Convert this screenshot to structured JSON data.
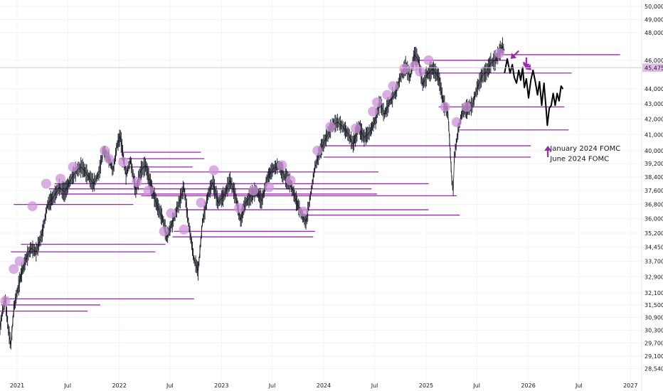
{
  "chart_data": {
    "type": "candlestick",
    "title": "",
    "x_range": [
      "2020-11-01",
      "2027-02-10"
    ],
    "y_scale": "log",
    "y_range": [
      28000,
      50500
    ],
    "grid": true,
    "x_ticks": [
      {
        "label": "2021",
        "date": "2021-01-01"
      },
      {
        "label": "Jul",
        "date": "2021-07-01"
      },
      {
        "label": "2022",
        "date": "2022-01-01"
      },
      {
        "label": "Jul",
        "date": "2022-07-01"
      },
      {
        "label": "2023",
        "date": "2023-01-01"
      },
      {
        "label": "Jul",
        "date": "2023-07-01"
      },
      {
        "label": "2024",
        "date": "2024-01-01"
      },
      {
        "label": "Jul",
        "date": "2024-07-01"
      },
      {
        "label": "2025",
        "date": "2025-01-01"
      },
      {
        "label": "Jul",
        "date": "2025-07-01"
      },
      {
        "label": "2026",
        "date": "2026-01-01"
      },
      {
        "label": "Jul",
        "date": "2026-07-01"
      },
      {
        "label": "2027",
        "date": "2027-01-01"
      }
    ],
    "y_ticks": [
      {
        "label": "50,000",
        "value": 50000
      },
      {
        "label": "49,000",
        "value": 49000
      },
      {
        "label": "48,000",
        "value": 48000
      },
      {
        "label": "46,000",
        "value": 46000
      },
      {
        "label": "44,000",
        "value": 44000
      },
      {
        "label": "43,000",
        "value": 43000
      },
      {
        "label": "42,000",
        "value": 42000
      },
      {
        "label": "41,000",
        "value": 41000
      },
      {
        "label": "40,000",
        "value": 40000
      },
      {
        "label": "39,200",
        "value": 39200
      },
      {
        "label": "38,400",
        "value": 38400
      },
      {
        "label": "37,600",
        "value": 37600
      },
      {
        "label": "36,800",
        "value": 36800
      },
      {
        "label": "36,000",
        "value": 36000
      },
      {
        "label": "35,200",
        "value": 35200
      },
      {
        "label": "34,450",
        "value": 34450
      },
      {
        "label": "33,700",
        "value": 33700
      },
      {
        "label": "32,900",
        "value": 32900
      },
      {
        "label": "32,100",
        "value": 32100
      },
      {
        "label": "31,500",
        "value": 31500
      },
      {
        "label": "30,900",
        "value": 30900
      },
      {
        "label": "30,300",
        "value": 30300
      },
      {
        "label": "29,700",
        "value": 29700
      },
      {
        "label": "29,100",
        "value": 29100
      },
      {
        "label": "28,540",
        "value": 28540
      }
    ],
    "last_price": {
      "label": "45,475",
      "value": 45475
    },
    "price_path": [
      [
        "2020-11-01",
        30400
      ],
      [
        "2020-11-10",
        31200
      ],
      [
        "2020-11-20",
        31800
      ],
      [
        "2020-12-01",
        30300
      ],
      [
        "2020-12-10",
        29600
      ],
      [
        "2020-12-20",
        31300
      ],
      [
        "2021-01-01",
        32100
      ],
      [
        "2021-01-15",
        33000
      ],
      [
        "2021-02-01",
        33800
      ],
      [
        "2021-02-20",
        34400
      ],
      [
        "2021-03-10",
        34200
      ],
      [
        "2021-04-01",
        35200
      ],
      [
        "2021-04-20",
        36800
      ],
      [
        "2021-05-10",
        37200
      ],
      [
        "2021-06-01",
        37800
      ],
      [
        "2021-06-20",
        37500
      ],
      [
        "2021-07-10",
        38200
      ],
      [
        "2021-08-01",
        38800
      ],
      [
        "2021-08-20",
        39000
      ],
      [
        "2021-09-10",
        38500
      ],
      [
        "2021-10-01",
        38000
      ],
      [
        "2021-10-20",
        38600
      ],
      [
        "2021-11-05",
        40000
      ],
      [
        "2021-11-25",
        39500
      ],
      [
        "2021-12-10",
        38800
      ],
      [
        "2021-12-25",
        40400
      ],
      [
        "2022-01-05",
        40900
      ],
      [
        "2022-01-25",
        38500
      ],
      [
        "2022-02-10",
        39400
      ],
      [
        "2022-03-01",
        37600
      ],
      [
        "2022-03-20",
        38800
      ],
      [
        "2022-04-05",
        39100
      ],
      [
        "2022-04-25",
        37800
      ],
      [
        "2022-05-15",
        36800
      ],
      [
        "2022-06-05",
        36000
      ],
      [
        "2022-06-20",
        35000
      ],
      [
        "2022-07-10",
        35800
      ],
      [
        "2022-08-01",
        36800
      ],
      [
        "2022-08-20",
        37800
      ],
      [
        "2022-09-05",
        35800
      ],
      [
        "2022-09-25",
        33800
      ],
      [
        "2022-10-10",
        33200
      ],
      [
        "2022-10-25",
        35800
      ],
      [
        "2022-11-15",
        37400
      ],
      [
        "2022-12-01",
        38100
      ],
      [
        "2022-12-20",
        36900
      ],
      [
        "2023-01-10",
        37300
      ],
      [
        "2023-02-01",
        38200
      ],
      [
        "2023-02-20",
        37300
      ],
      [
        "2023-03-10",
        35900
      ],
      [
        "2023-03-25",
        36800
      ],
      [
        "2023-04-15",
        37300
      ],
      [
        "2023-05-05",
        37600
      ],
      [
        "2023-05-25",
        37000
      ],
      [
        "2023-06-15",
        38400
      ],
      [
        "2023-07-05",
        38900
      ],
      [
        "2023-07-25",
        39100
      ],
      [
        "2023-08-15",
        38400
      ],
      [
        "2023-09-05",
        38000
      ],
      [
        "2023-09-25",
        37000
      ],
      [
        "2023-10-15",
        36200
      ],
      [
        "2023-10-30",
        35800
      ],
      [
        "2023-11-15",
        37300
      ],
      [
        "2023-12-01",
        39000
      ],
      [
        "2023-12-20",
        40000
      ],
      [
        "2024-01-10",
        40800
      ],
      [
        "2024-02-01",
        41600
      ],
      [
        "2024-02-20",
        41800
      ],
      [
        "2024-03-10",
        41500
      ],
      [
        "2024-03-30",
        41000
      ],
      [
        "2024-04-15",
        40400
      ],
      [
        "2024-05-05",
        41500
      ],
      [
        "2024-05-25",
        40800
      ],
      [
        "2024-06-15",
        41200
      ],
      [
        "2024-07-05",
        42000
      ],
      [
        "2024-07-20",
        43100
      ],
      [
        "2024-08-05",
        42300
      ],
      [
        "2024-08-25",
        43200
      ],
      [
        "2024-09-15",
        43800
      ],
      [
        "2024-10-01",
        44800
      ],
      [
        "2024-10-20",
        45600
      ],
      [
        "2024-11-05",
        44800
      ],
      [
        "2024-11-20",
        46400
      ],
      [
        "2024-12-05",
        46000
      ],
      [
        "2024-12-20",
        44300
      ],
      [
        "2025-01-05",
        45000
      ],
      [
        "2025-01-25",
        45400
      ],
      [
        "2025-02-15",
        44800
      ],
      [
        "2025-03-05",
        43000
      ],
      [
        "2025-03-20",
        42400
      ],
      [
        "2025-04-03",
        38200
      ],
      [
        "2025-04-08",
        37600
      ],
      [
        "2025-04-12",
        39600
      ],
      [
        "2025-04-25",
        41200
      ],
      [
        "2025-05-10",
        42500
      ],
      [
        "2025-05-30",
        42700
      ],
      [
        "2025-06-15",
        42900
      ],
      [
        "2025-07-01",
        44000
      ],
      [
        "2025-07-20",
        44900
      ],
      [
        "2025-08-05",
        45200
      ],
      [
        "2025-08-20",
        45800
      ],
      [
        "2025-09-05",
        46000
      ],
      [
        "2025-09-20",
        46600
      ],
      [
        "2025-10-01",
        47000
      ],
      [
        "2025-10-08",
        46700
      ]
    ],
    "projection_path": [
      [
        "2025-10-08",
        45100
      ],
      [
        "2025-10-18",
        46100
      ],
      [
        "2025-10-28",
        45100
      ],
      [
        "2025-11-05",
        45700
      ],
      [
        "2025-11-12",
        44800
      ],
      [
        "2025-11-20",
        44400
      ],
      [
        "2025-11-28",
        45300
      ],
      [
        "2025-12-05",
        44600
      ],
      [
        "2025-12-12",
        45500
      ],
      [
        "2025-12-18",
        44100
      ],
      [
        "2025-12-25",
        44700
      ],
      [
        "2026-01-02",
        43400
      ],
      [
        "2026-01-10",
        44600
      ],
      [
        "2026-01-18",
        45300
      ],
      [
        "2026-01-26",
        44500
      ],
      [
        "2026-02-03",
        43600
      ],
      [
        "2026-02-10",
        44500
      ],
      [
        "2026-02-18",
        42900
      ],
      [
        "2026-02-26",
        44400
      ],
      [
        "2026-03-06",
        42600
      ],
      [
        "2026-03-10",
        41600
      ],
      [
        "2026-03-17",
        42700
      ],
      [
        "2026-03-24",
        42900
      ],
      [
        "2026-03-31",
        43700
      ],
      [
        "2026-04-07",
        42900
      ],
      [
        "2026-04-14",
        43700
      ],
      [
        "2026-04-21",
        43200
      ],
      [
        "2026-04-28",
        44200
      ],
      [
        "2026-05-05",
        44000
      ]
    ],
    "levels": [
      {
        "start": "2025-09-20",
        "end": "2026-11-25",
        "value": 46400
      },
      {
        "start": "2024-12-01",
        "end": "2025-10-20",
        "value": 46000
      },
      {
        "start": "2024-12-10",
        "end": "2026-06-05",
        "value": 45100
      },
      {
        "start": "2025-02-15",
        "end": "2026-05-10",
        "value": 42800
      },
      {
        "start": "2025-05-01",
        "end": "2026-05-25",
        "value": 41300
      },
      {
        "start": "2024-01-05",
        "end": "2026-01-10",
        "value": 40300
      },
      {
        "start": "2024-01-01",
        "end": "2026-01-10",
        "value": 39600
      },
      {
        "start": "2022-01-05",
        "end": "2022-10-20",
        "value": 39900
      },
      {
        "start": "2022-01-01",
        "end": "2022-11-01",
        "value": 39500
      },
      {
        "start": "2022-01-10",
        "end": "2022-09-20",
        "value": 39000
      },
      {
        "start": "2022-04-20",
        "end": "2024-07-15",
        "value": 38700
      },
      {
        "start": "2021-05-15",
        "end": "2025-01-10",
        "value": 38000
      },
      {
        "start": "2021-04-25",
        "end": "2024-06-20",
        "value": 37700
      },
      {
        "start": "2021-06-01",
        "end": "2024-07-10",
        "value": 37400
      },
      {
        "start": "2022-03-20",
        "end": "2025-04-20",
        "value": 37300
      },
      {
        "start": "2020-12-20",
        "end": "2022-02-20",
        "value": 36800
      },
      {
        "start": "2022-08-01",
        "end": "2025-01-10",
        "value": 36500
      },
      {
        "start": "2023-10-10",
        "end": "2025-05-01",
        "value": 36200
      },
      {
        "start": "2022-07-15",
        "end": "2023-12-01",
        "value": 35300
      },
      {
        "start": "2022-07-10",
        "end": "2023-11-25",
        "value": 35000
      },
      {
        "start": "2021-01-15",
        "end": "2022-06-15",
        "value": 34600
      },
      {
        "start": "2020-12-10",
        "end": "2022-05-10",
        "value": 34200
      },
      {
        "start": "2020-11-10",
        "end": "2022-09-25",
        "value": 31800
      },
      {
        "start": "2020-11-05",
        "end": "2021-10-25",
        "value": 31500
      },
      {
        "start": "2020-11-01",
        "end": "2021-09-10",
        "value": 31200
      }
    ],
    "markers": [
      [
        "2020-11-20",
        31700
      ],
      [
        "2020-12-20",
        33300
      ],
      [
        "2021-01-10",
        33700
      ],
      [
        "2021-02-25",
        36700
      ],
      [
        "2021-04-15",
        38000
      ],
      [
        "2021-06-05",
        38300
      ],
      [
        "2021-07-20",
        39000
      ],
      [
        "2021-11-10",
        40000
      ],
      [
        "2021-11-25",
        39500
      ],
      [
        "2022-01-15",
        39300
      ],
      [
        "2022-03-05",
        38100
      ],
      [
        "2022-04-15",
        37600
      ],
      [
        "2022-06-10",
        35300
      ],
      [
        "2022-07-05",
        36300
      ],
      [
        "2022-08-20",
        35400
      ],
      [
        "2022-10-20",
        36900
      ],
      [
        "2022-12-05",
        38800
      ],
      [
        "2023-03-05",
        36600
      ],
      [
        "2023-04-25",
        37600
      ],
      [
        "2023-06-20",
        37800
      ],
      [
        "2023-08-05",
        39100
      ],
      [
        "2023-09-05",
        38200
      ],
      [
        "2023-10-20",
        36400
      ],
      [
        "2023-12-10",
        40000
      ],
      [
        "2024-01-25",
        41500
      ],
      [
        "2024-04-25",
        41400
      ],
      [
        "2024-06-25",
        42500
      ],
      [
        "2024-07-10",
        43100
      ],
      [
        "2024-08-15",
        43600
      ],
      [
        "2024-09-05",
        44200
      ],
      [
        "2024-10-15",
        45400
      ],
      [
        "2024-11-20",
        45600
      ],
      [
        "2024-12-10",
        45200
      ],
      [
        "2025-01-10",
        46000
      ],
      [
        "2025-03-10",
        42800
      ],
      [
        "2025-04-20",
        41800
      ],
      [
        "2025-05-25",
        42800
      ],
      [
        "2025-09-20",
        46500
      ]
    ],
    "arrows": [
      {
        "date": "2025-10-30",
        "value": 46100,
        "direction": "down-left"
      },
      {
        "date": "2025-12-25",
        "value": 45400,
        "direction": "down"
      },
      {
        "date": "2026-01-12",
        "value": 45300,
        "direction": "down-right"
      },
      {
        "date": "2026-03-12",
        "value": 40300,
        "direction": "up"
      }
    ],
    "annotations": [
      {
        "text": "January 2024 FOMC",
        "date": "2026-03-20",
        "value": 40000
      },
      {
        "text": "June 2024 FOMC",
        "date": "2026-03-20",
        "value": 39350
      }
    ],
    "colors": {
      "level": "#9c27b0",
      "marker": "#ce93d8",
      "arrow": "#9c27b0",
      "candle": "#131722",
      "projection": "#000000",
      "grid": "#f0f3fa",
      "price_line": "#e1bee7",
      "price_tag": "#e1bee7"
    }
  }
}
